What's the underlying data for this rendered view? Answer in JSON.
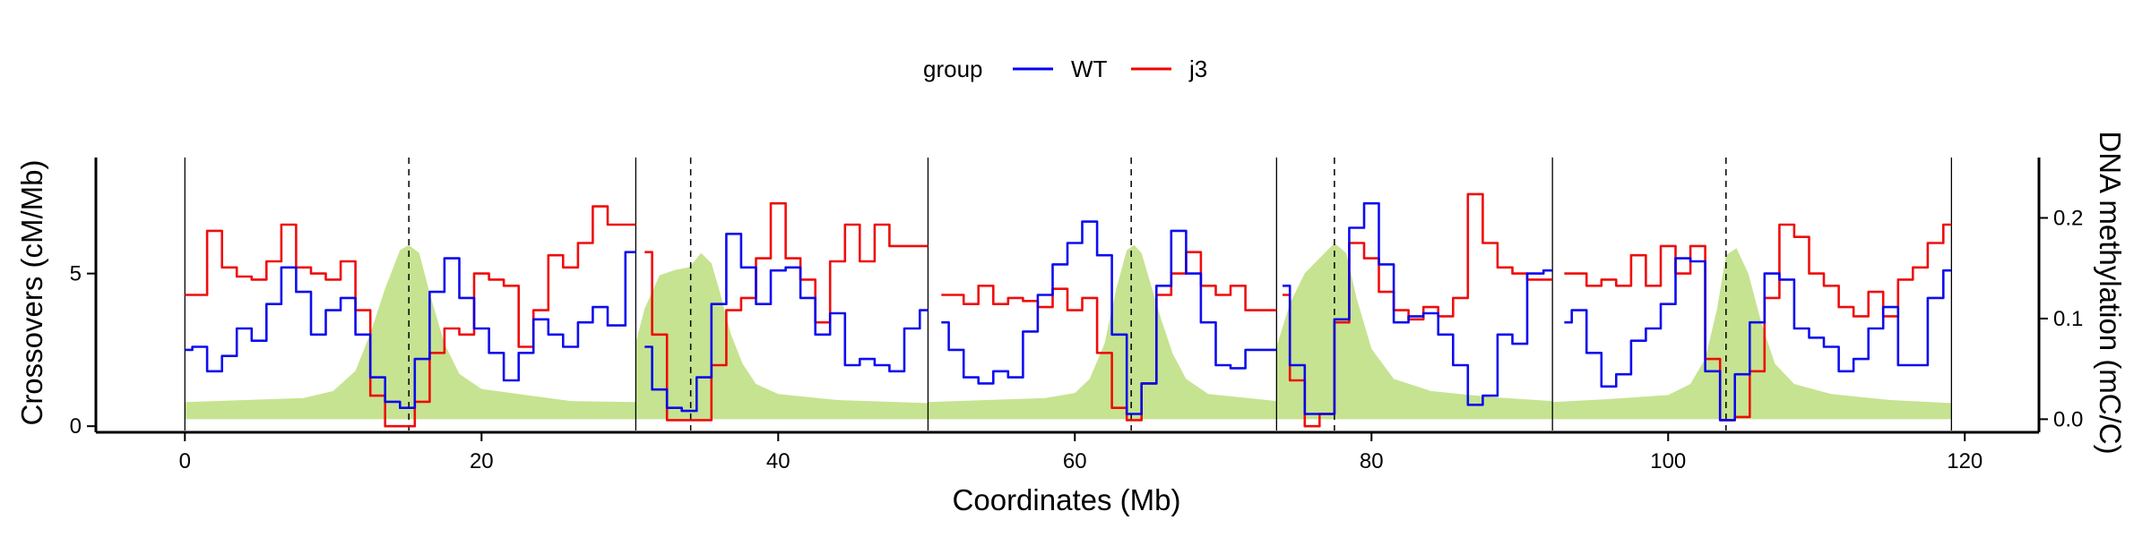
{
  "chart_data": {
    "type": "line",
    "xlabel": "Coordinates (Mb)",
    "ylabel": "Crossovers (cM/Mb)",
    "y2label": "DNA methylation (mC/C)",
    "xlim": [
      -6,
      125
    ],
    "ylim": [
      -0.2,
      8.8
    ],
    "y2lim": [
      -0.013,
      0.26
    ],
    "x_ticks": [
      0,
      20,
      40,
      60,
      80,
      100,
      120
    ],
    "y_ticks": [
      0,
      5
    ],
    "y2_ticks": [
      0.0,
      0.1,
      0.2
    ],
    "legend": {
      "title": "group",
      "placement": "top",
      "entries": [
        "WT",
        "j3"
      ]
    },
    "chromosome_boundaries": [
      0,
      30.4,
      50.1,
      73.6,
      92.2,
      119.1
    ],
    "centromeres": [
      15.1,
      34.1,
      63.8,
      77.5,
      103.9
    ],
    "colors": {
      "WT": "#0000ee",
      "j3": "#ee0000",
      "methylation": "#c6e391"
    },
    "series": [
      {
        "name": "WT",
        "x": [
          0,
          1,
          2,
          3,
          4,
          5,
          6,
          7,
          8,
          9,
          10,
          11,
          12,
          13,
          14,
          15,
          16,
          17,
          18,
          19,
          20,
          21,
          22,
          23,
          24,
          25,
          26,
          27,
          28,
          29,
          30.4,
          31,
          32,
          33,
          34,
          35,
          36,
          37,
          38,
          39,
          40,
          41,
          42,
          43,
          44,
          45,
          46,
          47,
          48,
          49,
          50.1,
          51,
          52,
          53,
          54,
          55,
          56,
          57,
          58,
          59,
          60,
          61,
          62,
          63,
          64,
          65,
          66,
          67,
          68,
          69,
          70,
          71,
          72,
          73.6,
          74,
          75,
          76,
          77,
          78,
          79,
          80,
          81,
          82,
          83,
          84,
          85,
          86,
          87,
          88,
          89,
          90,
          91,
          92.2,
          93,
          94,
          95,
          96,
          97,
          98,
          99,
          100,
          101,
          102,
          103,
          104,
          105,
          106,
          107,
          108,
          109,
          110,
          111,
          112,
          113,
          114,
          115,
          116,
          117,
          118,
          119.1
        ],
        "values": [
          2.5,
          2.6,
          1.8,
          2.3,
          3.2,
          2.8,
          4.0,
          5.2,
          4.4,
          3.0,
          3.8,
          4.2,
          3.0,
          1.6,
          0.8,
          0.6,
          2.2,
          4.4,
          5.5,
          4.2,
          3.2,
          2.4,
          1.5,
          2.4,
          3.5,
          3.0,
          2.6,
          3.4,
          3.9,
          3.3,
          5.7,
          2.6,
          1.2,
          0.6,
          0.5,
          1.6,
          4.0,
          6.3,
          5.2,
          4.0,
          5.1,
          5.2,
          4.2,
          3.0,
          3.7,
          2.0,
          2.2,
          2.0,
          1.8,
          3.2,
          3.8,
          3.4,
          2.5,
          1.6,
          1.4,
          1.8,
          1.6,
          3.1,
          4.3,
          5.3,
          6.0,
          6.7,
          5.6,
          3.0,
          0.4,
          1.4,
          4.6,
          6.4,
          5.0,
          3.4,
          2.0,
          1.9,
          2.5,
          2.5,
          4.6,
          2.0,
          0.4,
          0.4,
          3.5,
          6.5,
          7.3,
          5.3,
          3.4,
          3.6,
          3.7,
          3.0,
          2.0,
          0.7,
          1.0,
          3.0,
          2.7,
          5.0,
          5.1,
          3.4,
          3.8,
          2.4,
          1.3,
          1.7,
          2.8,
          3.2,
          4.0,
          5.5,
          5.4,
          1.8,
          0.2,
          1.7,
          3.4,
          5.0,
          4.8,
          3.2,
          2.9,
          2.6,
          1.8,
          2.2,
          3.2,
          3.9,
          2.0,
          2.0,
          4.2,
          5.1
        ]
      },
      {
        "name": "j3",
        "x": [
          0,
          1,
          2,
          3,
          4,
          5,
          6,
          7,
          8,
          9,
          10,
          11,
          12,
          13,
          14,
          15,
          16,
          17,
          18,
          19,
          20,
          21,
          22,
          23,
          24,
          25,
          26,
          27,
          28,
          29,
          30.4,
          31,
          32,
          33,
          34,
          35,
          36,
          37,
          38,
          39,
          40,
          41,
          42,
          43,
          44,
          45,
          46,
          47,
          48,
          49,
          50.1,
          51,
          52,
          53,
          54,
          55,
          56,
          57,
          58,
          59,
          60,
          61,
          62,
          63,
          64,
          65,
          66,
          67,
          68,
          69,
          70,
          71,
          72,
          73.6,
          74,
          75,
          76,
          77,
          78,
          79,
          80,
          81,
          82,
          83,
          84,
          85,
          86,
          87,
          88,
          89,
          90,
          91,
          92.2,
          93,
          94,
          95,
          96,
          97,
          98,
          99,
          100,
          101,
          102,
          103,
          104,
          105,
          106,
          107,
          108,
          109,
          110,
          111,
          112,
          113,
          114,
          115,
          116,
          117,
          118,
          119.1
        ],
        "values": [
          4.3,
          4.3,
          6.4,
          5.2,
          4.9,
          4.8,
          5.4,
          6.6,
          5.2,
          5.0,
          4.8,
          5.4,
          3.8,
          1.0,
          0.0,
          0.0,
          0.8,
          2.4,
          3.2,
          3.0,
          5.0,
          4.8,
          4.6,
          2.6,
          3.8,
          5.6,
          5.2,
          6.0,
          7.2,
          6.6,
          6.6,
          5.7,
          3.0,
          0.2,
          0.2,
          0.2,
          2.0,
          3.8,
          4.2,
          5.5,
          7.3,
          5.5,
          4.8,
          3.4,
          5.4,
          6.6,
          5.4,
          6.6,
          5.9,
          5.9,
          5.9,
          4.3,
          4.3,
          4.0,
          4.6,
          4.0,
          4.2,
          4.1,
          3.9,
          4.5,
          3.8,
          4.2,
          2.4,
          0.6,
          0.2,
          1.4,
          4.3,
          5.0,
          5.7,
          4.6,
          4.3,
          4.6,
          3.8,
          3.8,
          4.3,
          1.5,
          0.0,
          0.4,
          3.4,
          6.0,
          5.5,
          4.4,
          3.8,
          3.5,
          3.9,
          3.6,
          4.2,
          7.6,
          6.0,
          5.2,
          5.0,
          4.8,
          4.8,
          5.0,
          5.0,
          4.6,
          4.8,
          4.6,
          5.6,
          4.6,
          5.9,
          5.0,
          5.9,
          2.2,
          0.2,
          0.3,
          1.8,
          4.2,
          6.6,
          6.2,
          5.0,
          4.6,
          3.9,
          3.6,
          4.4,
          3.6,
          4.8,
          5.2,
          6.0,
          6.6
        ]
      },
      {
        "name": "methylation",
        "x": [
          0,
          4,
          8,
          10,
          11.5,
          12.5,
          13.5,
          14.5,
          15.1,
          15.8,
          16.5,
          17.5,
          18.5,
          20,
          23,
          26,
          30.4,
          30.4,
          31,
          32,
          33,
          34,
          34.8,
          35.5,
          36,
          36.8,
          37.6,
          38.5,
          40,
          44,
          50.1,
          50.1,
          54,
          58,
          60,
          61,
          62,
          62.8,
          63.5,
          64,
          64.5,
          65,
          65.8,
          66.6,
          67.5,
          69,
          73.6,
          73.6,
          74.5,
          75.5,
          76.5,
          77.5,
          78.3,
          79,
          80,
          81.5,
          84,
          88,
          92.2,
          92.2,
          96,
          100,
          101.5,
          102.5,
          103.3,
          103.9,
          104.6,
          105.4,
          106.3,
          107.2,
          108.5,
          111,
          115,
          119.1
        ],
        "values": [
          0.017,
          0.019,
          0.021,
          0.028,
          0.048,
          0.085,
          0.13,
          0.168,
          0.173,
          0.165,
          0.125,
          0.075,
          0.045,
          0.03,
          0.024,
          0.018,
          0.017,
          0.076,
          0.11,
          0.143,
          0.148,
          0.151,
          0.165,
          0.155,
          0.13,
          0.085,
          0.055,
          0.035,
          0.025,
          0.019,
          0.016,
          0.017,
          0.019,
          0.021,
          0.026,
          0.04,
          0.075,
          0.13,
          0.168,
          0.173,
          0.165,
          0.14,
          0.1,
          0.065,
          0.04,
          0.025,
          0.018,
          0.072,
          0.115,
          0.145,
          0.16,
          0.175,
          0.165,
          0.12,
          0.07,
          0.04,
          0.028,
          0.022,
          0.018,
          0.017,
          0.02,
          0.024,
          0.035,
          0.06,
          0.11,
          0.163,
          0.17,
          0.145,
          0.095,
          0.055,
          0.035,
          0.025,
          0.019,
          0.016
        ]
      }
    ]
  }
}
